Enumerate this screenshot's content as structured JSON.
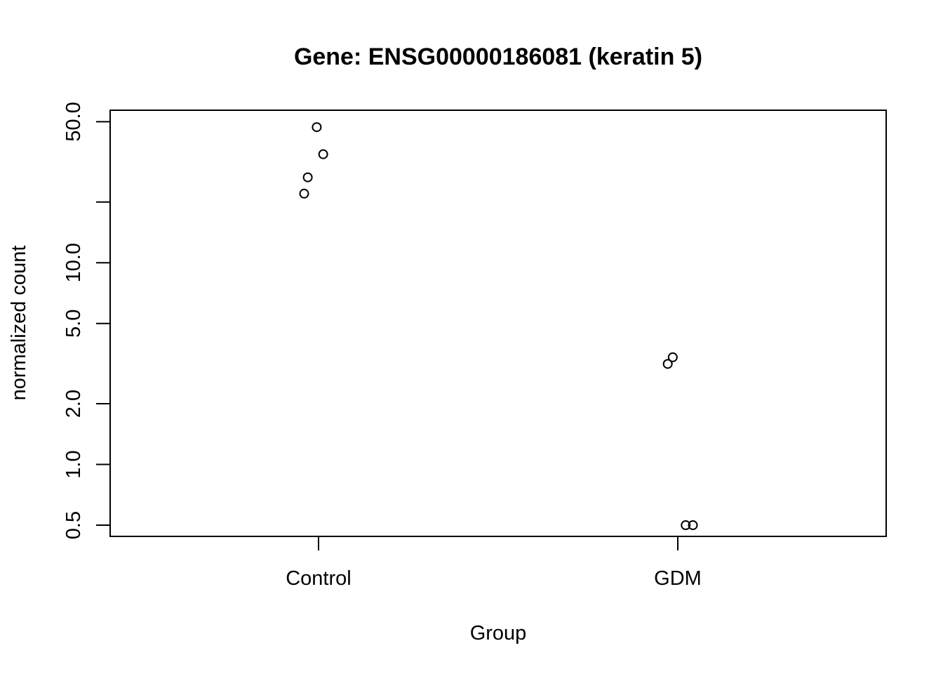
{
  "chart_data": {
    "type": "scatter",
    "title": "Gene: ENSG00000186081 (keratin 5)",
    "xlabel": "Group",
    "ylabel": "normalized count",
    "y_scale": "log",
    "ylim": [
      0.44,
      57
    ],
    "categories": [
      "Control",
      "GDM"
    ],
    "y_ticks": [
      {
        "value": 0.5,
        "label": "0.5"
      },
      {
        "value": 1.0,
        "label": "1.0"
      },
      {
        "value": 2.0,
        "label": "2.0"
      },
      {
        "value": 5.0,
        "label": "5.0"
      },
      {
        "value": 10.0,
        "label": "10.0"
      },
      {
        "value": 20.0,
        "label": ""
      },
      {
        "value": 50.0,
        "label": "50.0"
      }
    ],
    "points": [
      {
        "group": "Control",
        "jitter": -0.03,
        "y": 26.5
      },
      {
        "group": "Control",
        "jitter": -0.04,
        "y": 22.0
      },
      {
        "group": "Control",
        "jitter": -0.005,
        "y": 47.0
      },
      {
        "group": "Control",
        "jitter": 0.013,
        "y": 34.5
      },
      {
        "group": "GDM",
        "jitter": -0.028,
        "y": 3.15
      },
      {
        "group": "GDM",
        "jitter": -0.014,
        "y": 3.4
      },
      {
        "group": "GDM",
        "jitter": 0.022,
        "y": 0.5
      },
      {
        "group": "GDM",
        "jitter": 0.042,
        "y": 0.5
      }
    ],
    "marker": "open-circle",
    "grid": false,
    "legend": "none"
  }
}
